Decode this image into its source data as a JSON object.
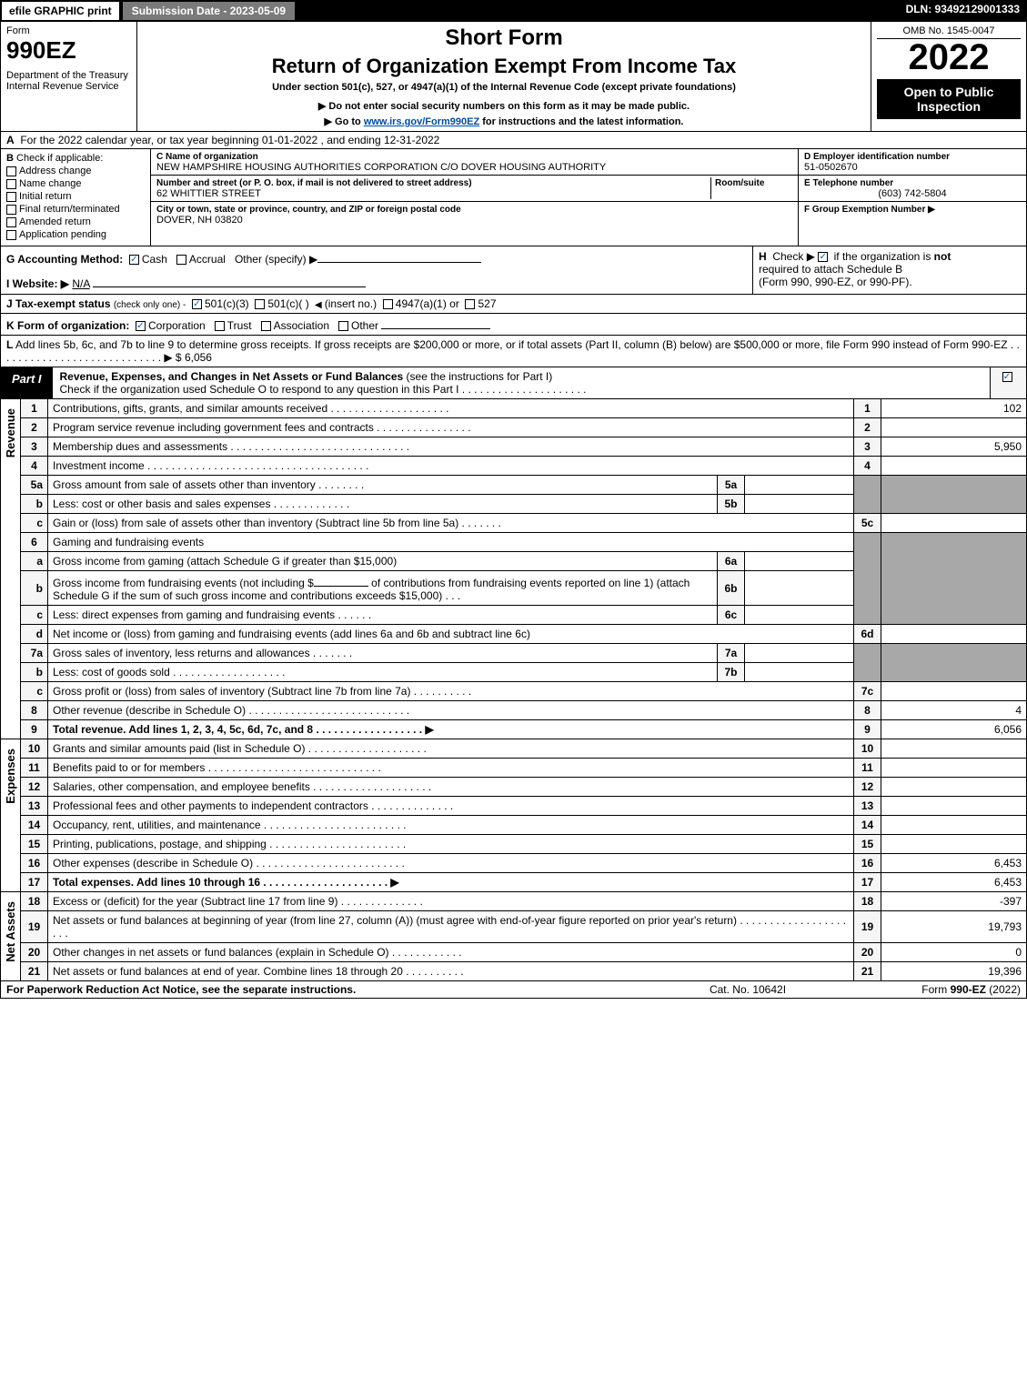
{
  "topbar": {
    "efile": "efile GRAPHIC print",
    "subdate_label": "Submission Date - 2023-05-09",
    "dln": "DLN: 93492129001333"
  },
  "header": {
    "form_label": "Form",
    "form_no": "990EZ",
    "dept": "Department of the Treasury\nInternal Revenue Service",
    "short_form": "Short Form",
    "title": "Return of Organization Exempt From Income Tax",
    "under_sec": "Under section 501(c), 527, or 4947(a)(1) of the Internal Revenue Code (except private foundations)",
    "do_not": "▶ Do not enter social security numbers on this form as it may be made public.",
    "goto_pre": "▶ Go to ",
    "goto_link": "www.irs.gov/Form990EZ",
    "goto_post": " for instructions and the latest information.",
    "omb": "OMB No. 1545-0047",
    "year": "2022",
    "open_to": "Open to Public Inspection"
  },
  "row_a": {
    "label": "A",
    "text": "For the 2022 calendar year, or tax year beginning 01-01-2022 , and ending 12-31-2022"
  },
  "box_b": {
    "label": "B",
    "heading": "Check if applicable:",
    "items": [
      {
        "label": "Address change",
        "checked": false
      },
      {
        "label": "Name change",
        "checked": false
      },
      {
        "label": "Initial return",
        "checked": false
      },
      {
        "label": "Final return/terminated",
        "checked": false
      },
      {
        "label": "Amended return",
        "checked": false
      },
      {
        "label": "Application pending",
        "checked": false
      }
    ]
  },
  "box_c": {
    "label": "C",
    "name_label": "Name of organization",
    "name": "NEW HAMPSHIRE HOUSING AUTHORITIES CORPORATION C/O DOVER HOUSING AUTHORITY",
    "street_label": "Number and street (or P. O. box, if mail is not delivered to street address)",
    "room_label": "Room/suite",
    "street": "62 WHITTIER STREET",
    "city_label": "City or town, state or province, country, and ZIP or foreign postal code",
    "city": "DOVER, NH  03820"
  },
  "box_d": {
    "label": "D Employer identification number",
    "value": "51-0502670"
  },
  "box_e": {
    "label": "E Telephone number",
    "value": "(603) 742-5804"
  },
  "box_f": {
    "label": "F Group Exemption Number  ▶",
    "value": ""
  },
  "box_g": {
    "label": "G Accounting Method:",
    "cash": "Cash",
    "accrual": "Accrual",
    "other": "Other (specify) ▶",
    "cash_checked": true
  },
  "box_h": {
    "label": "H",
    "text_pre": "Check ▶ ",
    "text_post": " if the organization is ",
    "not": "not",
    "text2": "required to attach Schedule B",
    "text3": "(Form 990, 990-EZ, or 990-PF).",
    "checked": true
  },
  "box_i": {
    "label": "I Website: ▶",
    "value": "N/A"
  },
  "row_j": {
    "label": "J Tax-exempt status",
    "small": "(check only one) -",
    "opt1": "501(c)(3)",
    "opt1_checked": true,
    "opt2": "501(c)(  )",
    "insert": "(insert no.)",
    "opt3": "4947(a)(1) or",
    "opt4": "527"
  },
  "row_k": {
    "label": "K Form of organization:",
    "corp": "Corporation",
    "corp_checked": true,
    "trust": "Trust",
    "assoc": "Association",
    "other": "Other"
  },
  "row_l": {
    "label": "L",
    "text": "Add lines 5b, 6c, and 7b to line 9 to determine gross receipts. If gross receipts are $200,000 or more, or if total assets (Part II, column (B) below) are $500,000 or more, file Form 990 instead of Form 990-EZ  .  .  .  .  .  .  .  .  .  .  .  .  .  .  .  .  .  .  .  .  .  .  .  .  .  .  .  .  ▶ $",
    "value": "6,056"
  },
  "part1": {
    "tab": "Part I",
    "title": "Revenue, Expenses, and Changes in Net Assets or Fund Balances",
    "instr": "(see the instructions for Part I)",
    "check_text": "Check if the organization used Schedule O to respond to any question in this Part I  .  .  .  .  .  .  .  .  .  .  .  .  .  .  .  .  .  .  .  .  .",
    "checked": true
  },
  "sections": {
    "revenue": "Revenue",
    "expenses": "Expenses",
    "netassets": "Net Assets"
  },
  "lines": {
    "l1": {
      "n": "1",
      "desc": "Contributions, gifts, grants, and similar amounts received  .  .  .  .  .  .  .  .  .  .  .  .  .  .  .  .  .  .  .  .",
      "rn": "1",
      "amt": "102"
    },
    "l2": {
      "n": "2",
      "desc": "Program service revenue including government fees and contracts  .  .  .  .  .  .  .  .  .  .  .  .  .  .  .  .",
      "rn": "2",
      "amt": ""
    },
    "l3": {
      "n": "3",
      "desc": "Membership dues and assessments  .  .  .  .  .  .  .  .  .  .  .  .  .  .  .  .  .  .  .  .  .  .  .  .  .  .  .  .  .  .",
      "rn": "3",
      "amt": "5,950"
    },
    "l4": {
      "n": "4",
      "desc": "Investment income  .  .  .  .  .  .  .  .  .  .  .  .  .  .  .  .  .  .  .  .  .  .  .  .  .  .  .  .  .  .  .  .  .  .  .  .  .",
      "rn": "4",
      "amt": ""
    },
    "l5a": {
      "n": "5a",
      "desc": "Gross amount from sale of assets other than inventory  .  .  .  .  .  .  .  .",
      "sn": "5a",
      "samt": ""
    },
    "l5b": {
      "n": "b",
      "desc": "Less: cost or other basis and sales expenses  .  .  .  .  .  .  .  .  .  .  .  .  .",
      "sn": "5b",
      "samt": ""
    },
    "l5c": {
      "n": "c",
      "desc": "Gain or (loss) from sale of assets other than inventory (Subtract line 5b from line 5a)  .  .  .  .  .  .  .",
      "rn": "5c",
      "amt": ""
    },
    "l6": {
      "n": "6",
      "desc": "Gaming and fundraising events"
    },
    "l6a": {
      "n": "a",
      "desc": "Gross income from gaming (attach Schedule G if greater than $15,000)",
      "sn": "6a",
      "samt": ""
    },
    "l6b": {
      "n": "b",
      "desc1": "Gross income from fundraising events (not including $",
      "desc2": "of contributions from fundraising events reported on line 1) (attach Schedule G if the sum of such gross income and contributions exceeds $15,000)   .  .  .",
      "sn": "6b",
      "samt": ""
    },
    "l6c": {
      "n": "c",
      "desc": "Less: direct expenses from gaming and fundraising events  .  .  .  .  .  .",
      "sn": "6c",
      "samt": ""
    },
    "l6d": {
      "n": "d",
      "desc": "Net income or (loss) from gaming and fundraising events (add lines 6a and 6b and subtract line 6c)",
      "rn": "6d",
      "amt": ""
    },
    "l7a": {
      "n": "7a",
      "desc": "Gross sales of inventory, less returns and allowances  .  .  .  .  .  .  .",
      "sn": "7a",
      "samt": ""
    },
    "l7b": {
      "n": "b",
      "desc": "Less: cost of goods sold   .  .  .  .  .  .  .  .  .  .  .  .  .  .  .  .  .  .  .",
      "sn": "7b",
      "samt": ""
    },
    "l7c": {
      "n": "c",
      "desc": "Gross profit or (loss) from sales of inventory (Subtract line 7b from line 7a)  .  .  .  .  .  .  .  .  .  .",
      "rn": "7c",
      "amt": ""
    },
    "l8": {
      "n": "8",
      "desc": "Other revenue (describe in Schedule O)  .  .  .  .  .  .  .  .  .  .  .  .  .  .  .  .  .  .  .  .  .  .  .  .  .  .  .",
      "rn": "8",
      "amt": "4"
    },
    "l9": {
      "n": "9",
      "desc": "Total revenue. Add lines 1, 2, 3, 4, 5c, 6d, 7c, and 8  .  .  .  .  .  .  .  .  .  .  .  .  .  .  .  .  .  .  ▶",
      "rn": "9",
      "amt": "6,056",
      "bold": true
    },
    "l10": {
      "n": "10",
      "desc": "Grants and similar amounts paid (list in Schedule O)  .  .  .  .  .  .  .  .  .  .  .  .  .  .  .  .  .  .  .  .",
      "rn": "10",
      "amt": ""
    },
    "l11": {
      "n": "11",
      "desc": "Benefits paid to or for members   .  .  .  .  .  .  .  .  .  .  .  .  .  .  .  .  .  .  .  .  .  .  .  .  .  .  .  .  .",
      "rn": "11",
      "amt": ""
    },
    "l12": {
      "n": "12",
      "desc": "Salaries, other compensation, and employee benefits  .  .  .  .  .  .  .  .  .  .  .  .  .  .  .  .  .  .  .  .",
      "rn": "12",
      "amt": ""
    },
    "l13": {
      "n": "13",
      "desc": "Professional fees and other payments to independent contractors  .  .  .  .  .  .  .  .  .  .  .  .  .  .",
      "rn": "13",
      "amt": ""
    },
    "l14": {
      "n": "14",
      "desc": "Occupancy, rent, utilities, and maintenance  .  .  .  .  .  .  .  .  .  .  .  .  .  .  .  .  .  .  .  .  .  .  .  .",
      "rn": "14",
      "amt": ""
    },
    "l15": {
      "n": "15",
      "desc": "Printing, publications, postage, and shipping  .  .  .  .  .  .  .  .  .  .  .  .  .  .  .  .  .  .  .  .  .  .  .",
      "rn": "15",
      "amt": ""
    },
    "l16": {
      "n": "16",
      "desc": "Other expenses (describe in Schedule O)   .  .  .  .  .  .  .  .  .  .  .  .  .  .  .  .  .  .  .  .  .  .  .  .  .",
      "rn": "16",
      "amt": "6,453"
    },
    "l17": {
      "n": "17",
      "desc": "Total expenses. Add lines 10 through 16   .  .  .  .  .  .  .  .  .  .  .  .  .  .  .  .  .  .  .  .  .  ▶",
      "rn": "17",
      "amt": "6,453",
      "bold": true
    },
    "l18": {
      "n": "18",
      "desc": "Excess or (deficit) for the year (Subtract line 17 from line 9)   .  .  .  .  .  .  .  .  .  .  .  .  .  .",
      "rn": "18",
      "amt": "-397"
    },
    "l19": {
      "n": "19",
      "desc": "Net assets or fund balances at beginning of year (from line 27, column (A)) (must agree with end-of-year figure reported on prior year's return)  .  .  .  .  .  .  .  .  .  .  .  .  .  .  .  .  .  .  .  .  .",
      "rn": "19",
      "amt": "19,793"
    },
    "l20": {
      "n": "20",
      "desc": "Other changes in net assets or fund balances (explain in Schedule O)  .  .  .  .  .  .  .  .  .  .  .  .",
      "rn": "20",
      "amt": "0"
    },
    "l21": {
      "n": "21",
      "desc": "Net assets or fund balances at end of year. Combine lines 18 through 20  .  .  .  .  .  .  .  .  .  .",
      "rn": "21",
      "amt": "19,396"
    }
  },
  "footer": {
    "left": "For Paperwork Reduction Act Notice, see the separate instructions.",
    "mid": "Cat. No. 10642I",
    "right_pre": "Form ",
    "right_bold": "990-EZ",
    "right_post": " (2022)"
  },
  "colors": {
    "link": "#004b9e",
    "grey_fill": "#a8a8a8",
    "light_grey": "#f5f5f5",
    "check_color": "#0066cc"
  }
}
